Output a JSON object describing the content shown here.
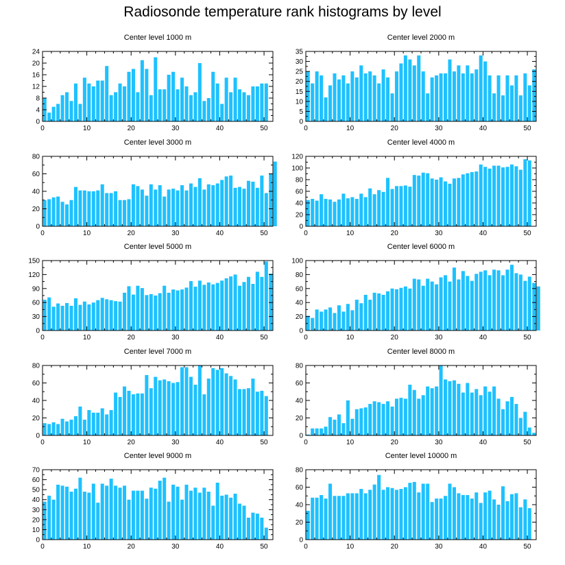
{
  "title": "Radiosonde temperature rank histograms by level",
  "colors": {
    "bar": "#1ec1ff",
    "axis": "#000000"
  },
  "chart_data": [
    {
      "type": "bar",
      "title": "Center level 1000 m",
      "xlim": [
        0,
        52
      ],
      "ylim": [
        0,
        24
      ],
      "xticks": [
        0,
        10,
        20,
        30,
        40,
        50
      ],
      "yticks": [
        0,
        4,
        8,
        12,
        16,
        20,
        24
      ],
      "values": [
        8,
        3,
        5,
        6,
        9,
        10,
        7,
        13,
        6,
        15,
        13,
        12,
        14,
        14,
        19,
        9,
        10,
        13,
        12,
        17,
        18,
        10,
        21,
        18,
        9,
        22,
        11,
        11,
        16,
        17,
        11,
        15,
        12,
        9,
        10,
        20,
        7,
        8,
        17,
        13,
        6,
        15,
        10,
        15,
        11,
        10,
        9,
        12,
        12,
        13,
        13
      ]
    },
    {
      "type": "bar",
      "title": "Center level 2000 m",
      "xlim": [
        0,
        52
      ],
      "ylim": [
        0,
        35
      ],
      "xticks": [
        0,
        10,
        20,
        30,
        40,
        50
      ],
      "yticks": [
        0,
        5,
        10,
        15,
        20,
        25,
        30,
        35
      ],
      "values": [
        25,
        19,
        25,
        23,
        12,
        18,
        24,
        21,
        23,
        19,
        25,
        22,
        28,
        24,
        25,
        23,
        19,
        26,
        22,
        14,
        25,
        29,
        33,
        31,
        28,
        33,
        25,
        14,
        22,
        23,
        24,
        24,
        31,
        25,
        28,
        24,
        28,
        24,
        26,
        33,
        30,
        23,
        14,
        23,
        13,
        23,
        18,
        23,
        13,
        24,
        18,
        26
      ]
    },
    {
      "type": "bar",
      "title": "Center level 3000 m",
      "xlim": [
        0,
        52
      ],
      "ylim": [
        0,
        80
      ],
      "xticks": [
        0,
        10,
        20,
        30,
        40,
        50
      ],
      "yticks": [
        0,
        20,
        40,
        60,
        80
      ],
      "values": [
        30,
        31,
        33,
        34,
        28,
        25,
        30,
        45,
        41,
        41,
        40,
        40,
        41,
        48,
        38,
        38,
        40,
        30,
        30,
        31,
        48,
        46,
        42,
        35,
        48,
        42,
        47,
        34,
        42,
        43,
        41,
        47,
        41,
        49,
        45,
        55,
        42,
        48,
        47,
        49,
        53,
        57,
        58,
        44,
        45,
        43,
        52,
        51,
        44,
        58,
        38,
        60,
        74
      ]
    },
    {
      "type": "bar",
      "title": "Center level 4000 m",
      "xlim": [
        0,
        52
      ],
      "ylim": [
        0,
        120
      ],
      "xticks": [
        0,
        10,
        20,
        30,
        40,
        50
      ],
      "yticks": [
        0,
        20,
        40,
        60,
        80,
        100,
        120
      ],
      "values": [
        45,
        47,
        44,
        55,
        47,
        46,
        42,
        46,
        56,
        48,
        50,
        47,
        56,
        50,
        65,
        55,
        62,
        59,
        83,
        64,
        69,
        69,
        70,
        68,
        88,
        87,
        92,
        91,
        82,
        80,
        84,
        77,
        73,
        82,
        83,
        89,
        91,
        93,
        94,
        106,
        102,
        99,
        104,
        104,
        101,
        102,
        106,
        103,
        97,
        115,
        113
      ]
    },
    {
      "type": "bar",
      "title": "Center level 5000 m",
      "xlim": [
        0,
        52
      ],
      "ylim": [
        0,
        150
      ],
      "xticks": [
        0,
        10,
        20,
        30,
        40,
        50
      ],
      "yticks": [
        0,
        30,
        60,
        90,
        120,
        150
      ],
      "values": [
        66,
        71,
        51,
        58,
        53,
        59,
        53,
        69,
        55,
        62,
        56,
        60,
        65,
        70,
        67,
        65,
        63,
        62,
        81,
        95,
        77,
        96,
        91,
        76,
        78,
        75,
        80,
        96,
        81,
        88,
        86,
        88,
        92,
        106,
        94,
        107,
        98,
        103,
        99,
        102,
        107,
        112,
        116,
        120,
        96,
        104,
        115,
        100,
        126,
        115,
        148,
        122
      ]
    },
    {
      "type": "bar",
      "title": "Center level 6000 m",
      "xlim": [
        0,
        52
      ],
      "ylim": [
        0,
        100
      ],
      "xticks": [
        0,
        10,
        20,
        30,
        40,
        50
      ],
      "yticks": [
        0,
        20,
        40,
        60,
        80,
        100
      ],
      "values": [
        21,
        18,
        30,
        27,
        30,
        33,
        25,
        36,
        27,
        38,
        29,
        44,
        39,
        51,
        44,
        54,
        53,
        51,
        56,
        60,
        59,
        61,
        63,
        60,
        74,
        73,
        64,
        74,
        70,
        66,
        76,
        79,
        70,
        90,
        73,
        85,
        78,
        71,
        81,
        84,
        86,
        79,
        87,
        86,
        79,
        87,
        94,
        82,
        80,
        71,
        77,
        68,
        63
      ]
    },
    {
      "type": "bar",
      "title": "Center level 7000 m",
      "xlim": [
        0,
        52
      ],
      "ylim": [
        0,
        80
      ],
      "xticks": [
        0,
        10,
        20,
        30,
        40,
        50
      ],
      "yticks": [
        0,
        20,
        40,
        60,
        80
      ],
      "values": [
        14,
        13,
        15,
        13,
        19,
        16,
        18,
        22,
        33,
        18,
        29,
        26,
        26,
        31,
        24,
        29,
        49,
        44,
        56,
        51,
        47,
        48,
        48,
        69,
        54,
        67,
        63,
        64,
        62,
        60,
        61,
        78,
        78,
        67,
        58,
        80,
        47,
        65,
        77,
        75,
        77,
        71,
        68,
        64,
        53,
        53,
        54,
        65,
        50,
        51,
        45
      ]
    },
    {
      "type": "bar",
      "title": "Center level 8000 m",
      "xlim": [
        0,
        52
      ],
      "ylim": [
        0,
        80
      ],
      "xticks": [
        0,
        10,
        20,
        30,
        40,
        50
      ],
      "yticks": [
        0,
        20,
        40,
        60,
        80
      ],
      "values": [
        1,
        8,
        8,
        8,
        10,
        21,
        18,
        24,
        14,
        40,
        19,
        30,
        31,
        32,
        36,
        39,
        38,
        36,
        39,
        33,
        42,
        43,
        42,
        58,
        52,
        42,
        46,
        56,
        54,
        56,
        80,
        64,
        62,
        63,
        59,
        49,
        60,
        49,
        53,
        46,
        56,
        50,
        56,
        42,
        30,
        39,
        44,
        36,
        20,
        27,
        9,
        3
      ]
    },
    {
      "type": "bar",
      "title": "Center level 9000 m",
      "xlim": [
        0,
        52
      ],
      "ylim": [
        0,
        70
      ],
      "xticks": [
        0,
        10,
        20,
        30,
        40,
        50
      ],
      "yticks": [
        0,
        10,
        20,
        30,
        40,
        50,
        60,
        70
      ],
      "values": [
        38,
        44,
        40,
        55,
        54,
        53,
        48,
        51,
        62,
        48,
        47,
        56,
        37,
        56,
        54,
        61,
        54,
        52,
        54,
        40,
        49,
        49,
        49,
        41,
        52,
        51,
        59,
        62,
        38,
        55,
        53,
        40,
        55,
        49,
        52,
        47,
        52,
        48,
        34,
        57,
        44,
        45,
        42,
        46,
        36,
        34,
        22,
        27,
        26,
        22,
        12
      ]
    },
    {
      "type": "bar",
      "title": "Center level 10000 m",
      "xlim": [
        0,
        52
      ],
      "ylim": [
        0,
        80
      ],
      "xticks": [
        0,
        10,
        20,
        30,
        40,
        50
      ],
      "yticks": [
        0,
        20,
        40,
        60,
        80
      ],
      "values": [
        33,
        48,
        48,
        51,
        47,
        64,
        50,
        50,
        50,
        53,
        53,
        53,
        58,
        53,
        57,
        63,
        74,
        57,
        60,
        59,
        57,
        58,
        60,
        65,
        66,
        54,
        64,
        64,
        43,
        47,
        47,
        50,
        64,
        60,
        53,
        51,
        51,
        47,
        54,
        42,
        54,
        56,
        46,
        40,
        61,
        44,
        52,
        53,
        37,
        46,
        36
      ]
    }
  ]
}
